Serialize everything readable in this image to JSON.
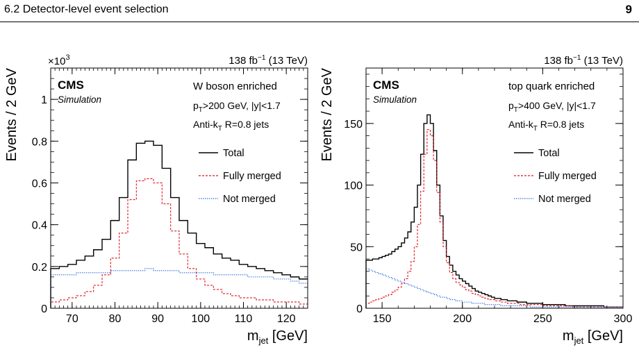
{
  "header": {
    "section": "6.2   Detector-level event selection",
    "page": "9"
  },
  "chart_data": [
    {
      "type": "line",
      "step": true,
      "lumi": "138 fb",
      "lumi_exp": "−1",
      "energy": "(13 TeV)",
      "experiment": "CMS",
      "simulation": "Simulation",
      "multiplier": "×10",
      "multiplier_exp": "3",
      "ylabel": "Events / 2 GeV",
      "xlabel_main": "m",
      "xlabel_sub": "jet",
      "xlabel_unit": " [GeV]",
      "xlim": [
        65,
        125
      ],
      "ylim": [
        0,
        1.15
      ],
      "xticks": [
        70,
        80,
        90,
        100,
        110,
        120
      ],
      "yticks": [
        0,
        0.2,
        0.4,
        0.6,
        0.8,
        1
      ],
      "ytick_labels": [
        "0",
        "0.2",
        "0.4",
        "0.6",
        "0.8",
        "1"
      ],
      "annotations": {
        "enriched": "W boson enriched",
        "pt_p": "p",
        "pt_sub": "T",
        "pt_rest": ">200 GeV, |y|<1.7",
        "algo_main": "Anti-k",
        "algo_sub": "T",
        "algo_rest": " R=0.8 jets"
      },
      "x_edges": [
        65,
        67,
        69,
        71,
        73,
        75,
        77,
        79,
        81,
        83,
        85,
        87,
        89,
        91,
        93,
        95,
        97,
        99,
        101,
        103,
        105,
        107,
        109,
        111,
        113,
        115,
        117,
        119,
        121,
        123,
        125
      ],
      "series": [
        {
          "name": "Total",
          "color": "#000000",
          "dash": "none",
          "values": [
            0.19,
            0.2,
            0.21,
            0.23,
            0.25,
            0.28,
            0.33,
            0.42,
            0.53,
            0.71,
            0.79,
            0.8,
            0.78,
            0.67,
            0.53,
            0.42,
            0.36,
            0.31,
            0.29,
            0.26,
            0.24,
            0.23,
            0.21,
            0.2,
            0.19,
            0.18,
            0.17,
            0.16,
            0.15,
            0.14
          ]
        },
        {
          "name": "Fully merged",
          "color": "#e0141e",
          "dash": "3,2",
          "values": [
            0.03,
            0.04,
            0.05,
            0.06,
            0.08,
            0.11,
            0.16,
            0.24,
            0.36,
            0.52,
            0.61,
            0.62,
            0.6,
            0.5,
            0.37,
            0.26,
            0.19,
            0.14,
            0.11,
            0.09,
            0.07,
            0.06,
            0.05,
            0.05,
            0.04,
            0.04,
            0.03,
            0.03,
            0.03,
            0.02
          ]
        },
        {
          "name": "Not merged",
          "color": "#2f6ee0",
          "dash": "1.5,1.5",
          "values": [
            0.16,
            0.16,
            0.16,
            0.17,
            0.17,
            0.17,
            0.17,
            0.18,
            0.18,
            0.18,
            0.18,
            0.19,
            0.18,
            0.18,
            0.18,
            0.17,
            0.17,
            0.17,
            0.17,
            0.16,
            0.16,
            0.16,
            0.16,
            0.15,
            0.15,
            0.15,
            0.14,
            0.14,
            0.13,
            0.12
          ]
        }
      ]
    },
    {
      "type": "line",
      "step": true,
      "lumi": "138 fb",
      "lumi_exp": "−1",
      "energy": "(13 TeV)",
      "experiment": "CMS",
      "simulation": "Simulation",
      "ylabel": "Events / 2 GeV",
      "xlabel_main": "m",
      "xlabel_sub": "jet",
      "xlabel_unit": " [GeV]",
      "xlim": [
        140,
        300
      ],
      "ylim": [
        0,
        195
      ],
      "xticks": [
        150,
        200,
        250,
        300
      ],
      "yticks": [
        0,
        50,
        100,
        150
      ],
      "ytick_labels": [
        "0",
        "50",
        "100",
        "150"
      ],
      "annotations": {
        "enriched": "top quark enriched",
        "pt_p": "p",
        "pt_sub": "T",
        "pt_rest": ">400 GeV, |y|<1.7",
        "algo_main": "Anti-k",
        "algo_sub": "T",
        "algo_rest": " R=0.8 jets"
      },
      "x_edges": [
        140,
        142,
        144,
        146,
        148,
        150,
        152,
        154,
        156,
        158,
        160,
        162,
        164,
        166,
        168,
        170,
        172,
        174,
        176,
        178,
        180,
        182,
        184,
        186,
        188,
        190,
        192,
        194,
        196,
        198,
        200,
        202,
        204,
        206,
        208,
        210,
        212,
        214,
        216,
        218,
        220,
        222,
        224,
        226,
        228,
        230,
        232,
        234,
        236,
        238,
        240,
        242,
        244,
        246,
        248,
        250,
        252,
        254,
        256,
        258,
        260,
        262,
        264,
        266,
        268,
        270,
        272,
        274,
        276,
        278,
        280,
        282,
        284,
        286,
        288,
        290,
        292,
        294,
        296,
        298,
        300
      ],
      "series": [
        {
          "name": "Total",
          "color": "#000000",
          "dash": "none",
          "values": [
            39,
            39,
            40,
            40,
            41,
            42,
            43,
            44,
            46,
            48,
            50,
            53,
            57,
            62,
            70,
            82,
            100,
            125,
            150,
            157,
            150,
            128,
            100,
            75,
            55,
            42,
            35,
            30,
            27,
            24,
            22,
            20,
            18,
            16,
            14,
            13,
            12,
            11,
            10,
            9,
            8,
            8,
            7,
            7,
            6,
            6,
            6,
            5,
            5,
            5,
            4,
            4,
            4,
            4,
            4,
            3,
            3,
            3,
            3,
            3,
            3,
            3,
            2,
            2,
            2,
            2,
            2,
            2,
            2,
            2,
            2,
            2,
            2,
            2,
            1,
            1,
            1,
            1,
            1,
            1
          ]
        },
        {
          "name": "Fully merged",
          "color": "#e0141e",
          "dash": "3,2",
          "values": [
            4,
            5,
            6,
            7,
            8,
            9,
            10,
            11,
            13,
            15,
            17,
            20,
            24,
            30,
            38,
            50,
            68,
            95,
            125,
            145,
            140,
            120,
            94,
            70,
            50,
            37,
            29,
            24,
            21,
            19,
            17,
            15,
            14,
            12,
            11,
            10,
            9,
            8,
            7,
            7,
            6,
            6,
            5,
            5,
            4,
            4,
            4,
            4,
            3,
            3,
            3,
            3,
            3,
            3,
            3,
            2,
            2,
            2,
            2,
            2,
            2,
            2,
            2,
            2,
            1,
            1,
            1,
            1,
            1,
            1,
            1,
            1,
            1,
            1,
            1,
            1,
            1,
            1,
            1,
            1
          ]
        },
        {
          "name": "Not merged",
          "color": "#2f6ee0",
          "dash": "1.5,1.5",
          "values": [
            32,
            31,
            30,
            29,
            28,
            27,
            26,
            25,
            24,
            23,
            22,
            21,
            20,
            19,
            18,
            17,
            16,
            15,
            14,
            13,
            12,
            11,
            10,
            9,
            9,
            8,
            7,
            7,
            6,
            6,
            5,
            5,
            5,
            4,
            4,
            4,
            4,
            3,
            3,
            3,
            3,
            3,
            2,
            2,
            2,
            2,
            2,
            2,
            2,
            2,
            2,
            1,
            1,
            1,
            1,
            1,
            1,
            1,
            1,
            1,
            1,
            1,
            1,
            1,
            1,
            1,
            1,
            1,
            1,
            1,
            1,
            1,
            1,
            1,
            1,
            1,
            1,
            1,
            1,
            1
          ]
        }
      ]
    }
  ]
}
